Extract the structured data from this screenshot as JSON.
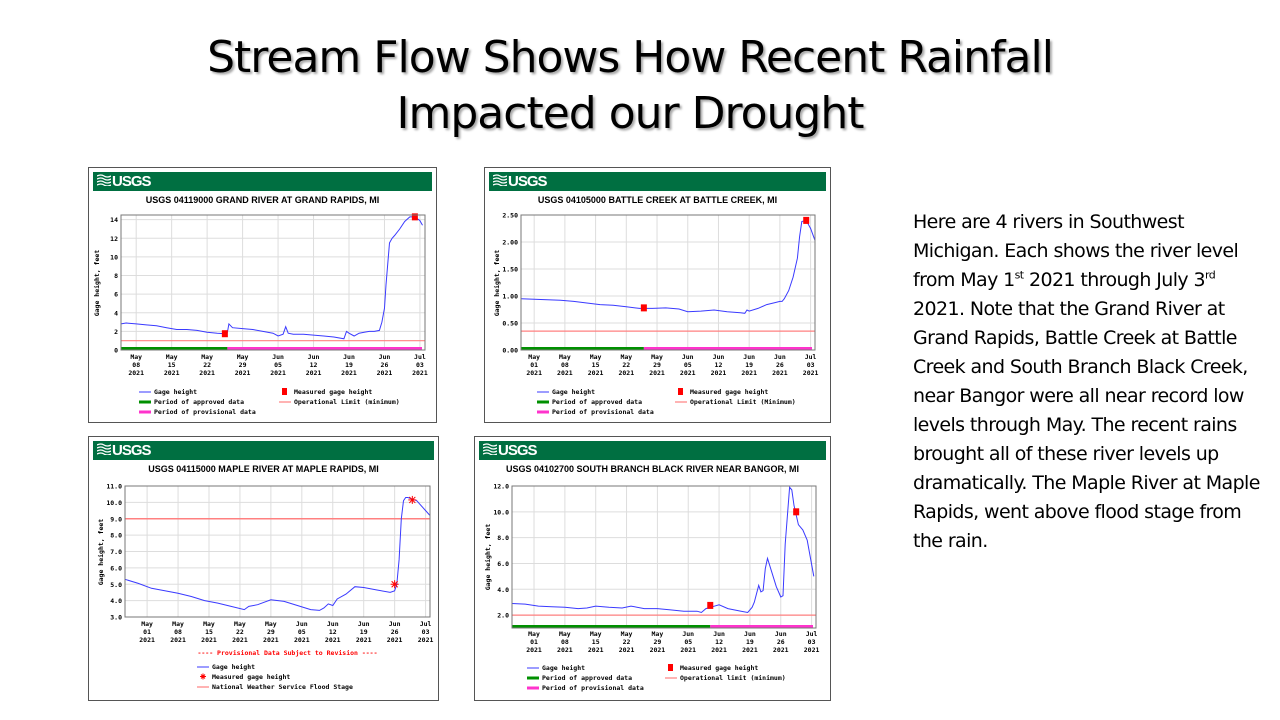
{
  "slide": {
    "title_line1": "Stream Flow Shows How Recent Rainfall",
    "title_line2": "Impacted our Drought",
    "body": {
      "p1": "Here are 4 rivers in Southwest Michigan. Each shows the river level from May 1",
      "sup1": "st",
      "p2": " 2021 through July 3",
      "sup2": "rd",
      "p3": " 2021.  Note that the Grand River at Grand Rapids, Battle Creek at Battle Creek and South Branch Black Creek, near Bangor were all near record low levels through May. The recent rains brought all of these river levels up dramatically.   The Maple River at Maple Rapids, went above flood stage from the rain."
    }
  },
  "colors": {
    "banner": "#006f41",
    "gage_line": "#3a3aff",
    "approved": "#009000",
    "provisional": "#ff33cc",
    "limit": "#ff8080",
    "measured": "#ff0000",
    "grid": "#dddddd"
  },
  "logo_text": "USGS",
  "chart_data": [
    {
      "type": "line",
      "title": "USGS 04119000 GRAND RIVER AT GRAND RAPIDS, MI",
      "ylabel": "Gage height, feet",
      "xlabel": "",
      "ylim": [
        0,
        14.5
      ],
      "yticks": [
        "0",
        "2",
        "4",
        "6",
        "8",
        "10",
        "12",
        "14"
      ],
      "ytick_values": [
        0,
        2,
        4,
        6,
        8,
        10,
        12,
        14
      ],
      "xlim_days": [
        4,
        64
      ],
      "xticks": [
        {
          "day": 7,
          "m": "May",
          "d": "08",
          "y": "2021"
        },
        {
          "day": 14,
          "m": "May",
          "d": "15",
          "y": "2021"
        },
        {
          "day": 21,
          "m": "May",
          "d": "22",
          "y": "2021"
        },
        {
          "day": 28,
          "m": "May",
          "d": "29",
          "y": "2021"
        },
        {
          "day": 35,
          "m": "Jun",
          "d": "05",
          "y": "2021"
        },
        {
          "day": 42,
          "m": "Jun",
          "d": "12",
          "y": "2021"
        },
        {
          "day": 49,
          "m": "Jun",
          "d": "19",
          "y": "2021"
        },
        {
          "day": 56,
          "m": "Jun",
          "d": "26",
          "y": "2021"
        },
        {
          "day": 63,
          "m": "Jul",
          "d": "03",
          "y": "2021"
        }
      ],
      "series": [
        {
          "name": "Gage height",
          "x": [
            4,
            5,
            7,
            9,
            11,
            13,
            15,
            17,
            19,
            21,
            23,
            24.5,
            25,
            25.3,
            26,
            28,
            30,
            32,
            34,
            35,
            36,
            36.5,
            37,
            38,
            40,
            42,
            44,
            46,
            48,
            48.5,
            49,
            50,
            51,
            52,
            53,
            54,
            55,
            55.5,
            56,
            56.3,
            57,
            57.5,
            58,
            59,
            60,
            61,
            62,
            63,
            63.5
          ],
          "y": [
            2.8,
            2.9,
            2.8,
            2.7,
            2.6,
            2.4,
            2.2,
            2.2,
            2.1,
            1.9,
            1.8,
            1.75,
            1.9,
            2.8,
            2.4,
            2.3,
            2.2,
            2.0,
            1.8,
            1.5,
            1.7,
            2.5,
            1.8,
            1.7,
            1.7,
            1.6,
            1.5,
            1.4,
            1.2,
            2.0,
            1.8,
            1.5,
            1.8,
            1.9,
            2.0,
            2.0,
            2.1,
            3.0,
            4.5,
            7.0,
            11.5,
            12.0,
            12.3,
            13.0,
            13.8,
            14.3,
            14.3,
            13.9,
            13.4
          ]
        }
      ],
      "measured": [
        {
          "x": 24.5,
          "y": 1.75
        },
        {
          "x": 62,
          "y": 14.3
        }
      ],
      "limit": 1.0,
      "approved_until_day": 25,
      "legend": [
        "Gage height",
        "Measured gage height",
        "Period of approved data",
        "Operational Limit (minimum)",
        "Period of provisional data"
      ],
      "note": ""
    },
    {
      "type": "line",
      "title": "USGS 04105000 BATTLE CREEK AT BATTLE CREEK, MI",
      "ylabel": "Gage height, feet",
      "xlabel": "",
      "ylim": [
        0,
        2.5
      ],
      "yticks": [
        "0.00",
        "0.50",
        "1.00",
        "1.50",
        "2.00",
        "2.50"
      ],
      "ytick_values": [
        0,
        0.5,
        1.0,
        1.5,
        2.0,
        2.5
      ],
      "xlim_days": [
        -3,
        64
      ],
      "xticks": [
        {
          "day": 0,
          "m": "May",
          "d": "01",
          "y": "2021"
        },
        {
          "day": 7,
          "m": "May",
          "d": "08",
          "y": "2021"
        },
        {
          "day": 14,
          "m": "May",
          "d": "15",
          "y": "2021"
        },
        {
          "day": 21,
          "m": "May",
          "d": "22",
          "y": "2021"
        },
        {
          "day": 28,
          "m": "May",
          "d": "29",
          "y": "2021"
        },
        {
          "day": 35,
          "m": "Jun",
          "d": "05",
          "y": "2021"
        },
        {
          "day": 42,
          "m": "Jun",
          "d": "12",
          "y": "2021"
        },
        {
          "day": 49,
          "m": "Jun",
          "d": "19",
          "y": "2021"
        },
        {
          "day": 56,
          "m": "Jun",
          "d": "26",
          "y": "2021"
        },
        {
          "day": 63,
          "m": "Jul",
          "d": "03",
          "y": "2021"
        }
      ],
      "series": [
        {
          "name": "Gage height",
          "x": [
            -3,
            0,
            3,
            6,
            9,
            12,
            15,
            18,
            21,
            24,
            27,
            30,
            33,
            35,
            38,
            41,
            44,
            47,
            48,
            48.5,
            49,
            51,
            53,
            55,
            56,
            56.5,
            57,
            58,
            59,
            60,
            60.5,
            61,
            62,
            63,
            64
          ],
          "y": [
            0.95,
            0.94,
            0.93,
            0.92,
            0.9,
            0.87,
            0.84,
            0.83,
            0.8,
            0.77,
            0.77,
            0.78,
            0.76,
            0.71,
            0.72,
            0.74,
            0.71,
            0.69,
            0.68,
            0.74,
            0.72,
            0.77,
            0.84,
            0.88,
            0.9,
            0.9,
            0.95,
            1.1,
            1.35,
            1.7,
            2.1,
            2.38,
            2.4,
            2.25,
            2.03
          ]
        }
      ],
      "measured": [
        {
          "x": 25,
          "y": 0.78
        },
        {
          "x": 62,
          "y": 2.4
        }
      ],
      "limit": 0.35,
      "approved_until_day": 25,
      "legend": [
        "Gage height",
        "Measured gage height",
        "Period of approved data",
        "Operational Limit (Minimum)",
        "Period of provisional data"
      ],
      "note": ""
    },
    {
      "type": "line",
      "title": "USGS 04115000 MAPLE RIVER AT MAPLE RAPIDS, MI",
      "ylabel": "Gage height, feet",
      "xlabel": "",
      "ylim": [
        3.0,
        11.0
      ],
      "yticks": [
        "3.0",
        "4.0",
        "5.0",
        "6.0",
        "7.0",
        "8.0",
        "9.0",
        "10.0",
        "11.0"
      ],
      "ytick_values": [
        3,
        4,
        5,
        6,
        7,
        8,
        9,
        10,
        11
      ],
      "xlim_days": [
        -5,
        64
      ],
      "xticks": [
        {
          "day": 0,
          "m": "May",
          "d": "01",
          "y": "2021"
        },
        {
          "day": 7,
          "m": "May",
          "d": "08",
          "y": "2021"
        },
        {
          "day": 14,
          "m": "May",
          "d": "15",
          "y": "2021"
        },
        {
          "day": 21,
          "m": "May",
          "d": "22",
          "y": "2021"
        },
        {
          "day": 28,
          "m": "May",
          "d": "29",
          "y": "2021"
        },
        {
          "day": 35,
          "m": "Jun",
          "d": "05",
          "y": "2021"
        },
        {
          "day": 42,
          "m": "Jun",
          "d": "12",
          "y": "2021"
        },
        {
          "day": 49,
          "m": "Jun",
          "d": "19",
          "y": "2021"
        },
        {
          "day": 56,
          "m": "Jun",
          "d": "26",
          "y": "2021"
        },
        {
          "day": 63,
          "m": "Jul",
          "d": "03",
          "y": "2021"
        }
      ],
      "series": [
        {
          "name": "Gage height",
          "x": [
            -5,
            -2,
            1,
            4,
            7,
            10,
            13,
            16,
            19,
            22,
            23,
            25,
            28,
            31,
            34,
            37,
            39,
            40,
            41,
            42,
            43,
            45,
            47,
            49,
            52,
            55,
            56,
            56.5,
            57,
            57.5,
            58,
            58.5,
            59,
            61,
            64
          ],
          "y": [
            5.3,
            5.05,
            4.75,
            4.6,
            4.45,
            4.25,
            4.0,
            3.85,
            3.65,
            3.45,
            3.65,
            3.75,
            4.05,
            3.95,
            3.7,
            3.45,
            3.4,
            3.55,
            3.8,
            3.7,
            4.1,
            4.4,
            4.85,
            4.8,
            4.65,
            4.5,
            4.6,
            5.0,
            6.5,
            9.0,
            10.1,
            10.3,
            10.3,
            10.1,
            9.2
          ]
        }
      ],
      "measured": [
        {
          "x": 56,
          "y": 5.0
        },
        {
          "x": 60,
          "y": 10.15
        }
      ],
      "measured_style": "asterisk",
      "limit": 9.0,
      "approved_until_day": null,
      "legend": [
        "Gage height",
        "Measured gage height",
        "National Weather Service Flood Stage"
      ],
      "note": "---- Provisional Data Subject to Revision ----"
    },
    {
      "type": "line",
      "title": "USGS 04102700 SOUTH BRANCH BLACK RIVER NEAR BANGOR, MI",
      "ylabel": "Gage height, feet",
      "xlabel": "",
      "ylim": [
        1.0,
        12.0
      ],
      "yticks": [
        "2.0",
        "4.0",
        "6.0",
        "8.0",
        "10.0",
        "12.0"
      ],
      "ytick_values": [
        2,
        4,
        6,
        8,
        10,
        12
      ],
      "xlim_days": [
        -5,
        64
      ],
      "xticks": [
        {
          "day": 0,
          "m": "May",
          "d": "01",
          "y": "2021"
        },
        {
          "day": 7,
          "m": "May",
          "d": "08",
          "y": "2021"
        },
        {
          "day": 14,
          "m": "May",
          "d": "15",
          "y": "2021"
        },
        {
          "day": 21,
          "m": "May",
          "d": "22",
          "y": "2021"
        },
        {
          "day": 28,
          "m": "May",
          "d": "29",
          "y": "2021"
        },
        {
          "day": 35,
          "m": "Jun",
          "d": "05",
          "y": "2021"
        },
        {
          "day": 42,
          "m": "Jun",
          "d": "12",
          "y": "2021"
        },
        {
          "day": 49,
          "m": "Jun",
          "d": "19",
          "y": "2021"
        },
        {
          "day": 56,
          "m": "Jun",
          "d": "26",
          "y": "2021"
        },
        {
          "day": 63,
          "m": "Jul",
          "d": "03",
          "y": "2021"
        }
      ],
      "series": [
        {
          "name": "Gage height",
          "x": [
            -5,
            -2,
            1,
            4,
            7,
            10,
            12,
            14,
            17,
            20,
            22,
            25,
            28,
            31,
            34,
            37,
            38,
            39,
            40,
            42,
            44,
            47,
            48.5,
            49.5,
            50,
            51,
            51.5,
            52,
            52.5,
            53,
            55,
            56,
            56.5,
            57,
            58,
            58.5,
            59,
            60,
            61,
            62,
            63.5
          ],
          "y": [
            2.9,
            2.85,
            2.7,
            2.65,
            2.6,
            2.5,
            2.55,
            2.7,
            2.6,
            2.55,
            2.7,
            2.5,
            2.5,
            2.4,
            2.3,
            2.3,
            2.2,
            2.5,
            2.6,
            2.8,
            2.5,
            2.3,
            2.2,
            2.6,
            3.0,
            4.3,
            3.8,
            3.9,
            5.6,
            6.4,
            4.2,
            3.4,
            3.5,
            7.5,
            11.9,
            11.7,
            10.5,
            9.0,
            8.6,
            7.8,
            5.0
          ]
        }
      ],
      "measured": [
        {
          "x": 40,
          "y": 2.75
        },
        {
          "x": 59.5,
          "y": 10.0
        }
      ],
      "limit": 2.0,
      "approved_until_day": 40,
      "legend": [
        "Gage height",
        "Measured gage height",
        "Period of approved data",
        "Operational limit (minimum)",
        "Period of provisional data"
      ],
      "note": ""
    }
  ]
}
